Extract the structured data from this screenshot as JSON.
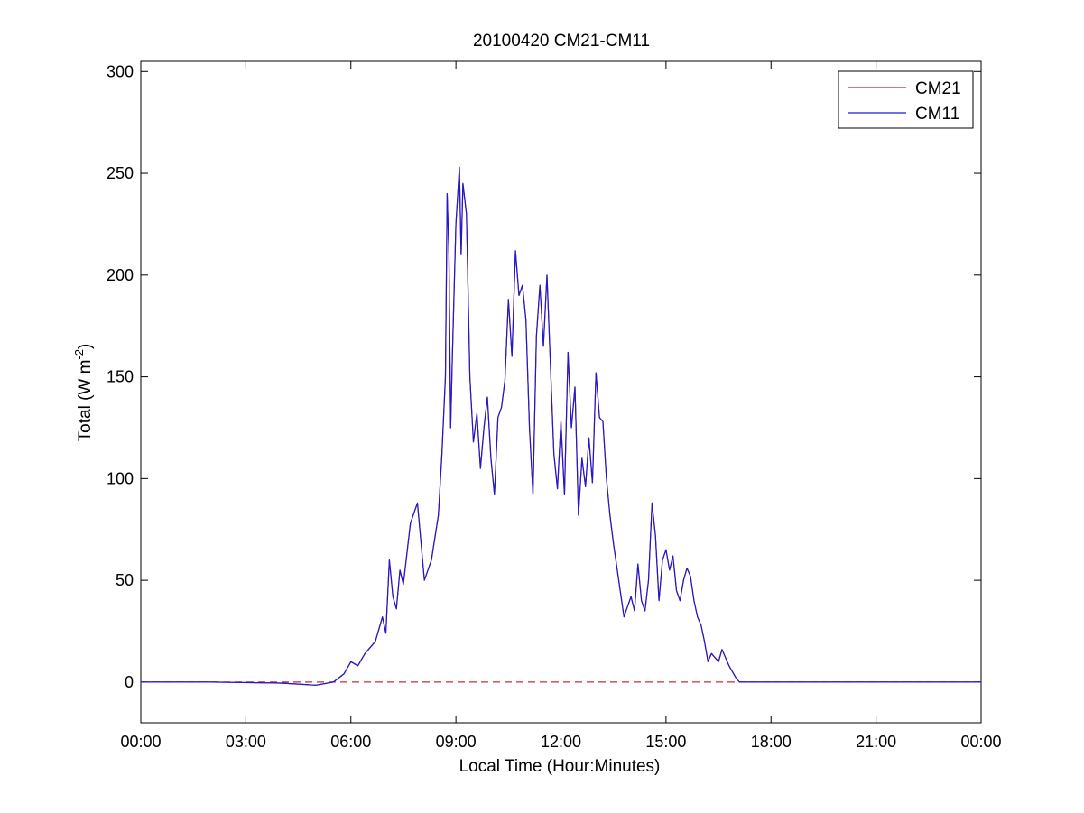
{
  "chart_data": {
    "type": "line",
    "title": "20100420 CM21-CM11",
    "xlabel": "Local Time (Hour:Minutes)",
    "ylabel": "Total (W m^-2)",
    "ylabel_parts": {
      "base": "Total (W m",
      "sup": "-2",
      "end": ")"
    },
    "xlim": [
      0,
      24
    ],
    "ylim": [
      -20,
      305
    ],
    "x_ticks": [
      0,
      3,
      6,
      9,
      12,
      15,
      18,
      21,
      24
    ],
    "x_tick_labels": [
      "00:00",
      "03:00",
      "06:00",
      "09:00",
      "12:00",
      "15:00",
      "18:00",
      "21:00",
      "00:00"
    ],
    "y_ticks": [
      0,
      50,
      100,
      150,
      200,
      250,
      300
    ],
    "y_tick_labels": [
      "0",
      "50",
      "100",
      "150",
      "200",
      "250",
      "300"
    ],
    "grid": false,
    "legend_position": "top-right",
    "reference_line": {
      "y": 0,
      "style": "dashed",
      "color": "#c0303a"
    },
    "series": [
      {
        "name": "CM21",
        "color": "#cc2020",
        "x": [
          0,
          2.0,
          4.0,
          4.5,
          5.0,
          5.5,
          5.8,
          6.0,
          6.2,
          6.4,
          6.7,
          6.9,
          7.0,
          7.1,
          7.2,
          7.3,
          7.4,
          7.5,
          7.7,
          7.9,
          8.1,
          8.3,
          8.5,
          8.6,
          8.7,
          8.75,
          8.8,
          8.85,
          8.9,
          9.0,
          9.1,
          9.15,
          9.2,
          9.3,
          9.4,
          9.5,
          9.6,
          9.7,
          9.8,
          9.9,
          10.0,
          10.1,
          10.2,
          10.3,
          10.4,
          10.5,
          10.6,
          10.7,
          10.8,
          10.9,
          11.0,
          11.1,
          11.2,
          11.3,
          11.4,
          11.5,
          11.6,
          11.7,
          11.8,
          11.9,
          12.0,
          12.1,
          12.2,
          12.3,
          12.4,
          12.5,
          12.6,
          12.7,
          12.8,
          12.9,
          13.0,
          13.1,
          13.2,
          13.3,
          13.4,
          13.5,
          13.6,
          13.8,
          14.0,
          14.1,
          14.2,
          14.3,
          14.4,
          14.5,
          14.6,
          14.7,
          14.8,
          14.9,
          15.0,
          15.1,
          15.2,
          15.3,
          15.4,
          15.5,
          15.6,
          15.7,
          15.8,
          15.9,
          16.0,
          16.1,
          16.2,
          16.3,
          16.4,
          16.5,
          16.6,
          16.7,
          16.8,
          16.9,
          17.0,
          17.1,
          17.2,
          17.3,
          17.5,
          17.7,
          17.9,
          18.1,
          18.3,
          18.5,
          18.7,
          19.0,
          21.0,
          24.0
        ],
        "values": [
          0,
          0,
          -0.5,
          -1,
          -1.5,
          0,
          4,
          10,
          8,
          14,
          20,
          32,
          24,
          60,
          42,
          36,
          55,
          48,
          78,
          88,
          50,
          60,
          82,
          112,
          150,
          240,
          210,
          125,
          160,
          225,
          253,
          210,
          245,
          230,
          150,
          118,
          132,
          105,
          125,
          140,
          110,
          92,
          130,
          135,
          148,
          188,
          160,
          212,
          190,
          195,
          178,
          125,
          92,
          170,
          195,
          165,
          200,
          155,
          112,
          95,
          128,
          92,
          162,
          125,
          145,
          82,
          110,
          96,
          120,
          98,
          152,
          130,
          128,
          100,
          82,
          68,
          56,
          32,
          42,
          35,
          58,
          40,
          35,
          50,
          88,
          72,
          40,
          60,
          65,
          55,
          62,
          45,
          40,
          50,
          56,
          52,
          40,
          32,
          28,
          20,
          10,
          14,
          12,
          10,
          16,
          12,
          8,
          5,
          2,
          0,
          0,
          0,
          0,
          0,
          0,
          0,
          0,
          0,
          0,
          0,
          0,
          0
        ]
      },
      {
        "name": "CM11",
        "color": "#1a1ad4",
        "x": [
          0,
          2.0,
          4.0,
          4.5,
          5.0,
          5.5,
          5.8,
          6.0,
          6.2,
          6.4,
          6.7,
          6.9,
          7.0,
          7.1,
          7.2,
          7.3,
          7.4,
          7.5,
          7.7,
          7.9,
          8.1,
          8.3,
          8.5,
          8.6,
          8.7,
          8.75,
          8.8,
          8.85,
          8.9,
          9.0,
          9.1,
          9.15,
          9.2,
          9.3,
          9.4,
          9.5,
          9.6,
          9.7,
          9.8,
          9.9,
          10.0,
          10.1,
          10.2,
          10.3,
          10.4,
          10.5,
          10.6,
          10.7,
          10.8,
          10.9,
          11.0,
          11.1,
          11.2,
          11.3,
          11.4,
          11.5,
          11.6,
          11.7,
          11.8,
          11.9,
          12.0,
          12.1,
          12.2,
          12.3,
          12.4,
          12.5,
          12.6,
          12.7,
          12.8,
          12.9,
          13.0,
          13.1,
          13.2,
          13.3,
          13.4,
          13.5,
          13.6,
          13.8,
          14.0,
          14.1,
          14.2,
          14.3,
          14.4,
          14.5,
          14.6,
          14.7,
          14.8,
          14.9,
          15.0,
          15.1,
          15.2,
          15.3,
          15.4,
          15.5,
          15.6,
          15.7,
          15.8,
          15.9,
          16.0,
          16.1,
          16.2,
          16.3,
          16.4,
          16.5,
          16.6,
          16.7,
          16.8,
          16.9,
          17.0,
          17.1,
          17.2,
          17.3,
          17.5,
          17.7,
          17.9,
          18.1,
          18.3,
          18.5,
          18.7,
          19.0,
          21.0,
          24.0
        ],
        "values": [
          0,
          0,
          -0.5,
          -1,
          -1.5,
          0,
          4,
          10,
          8,
          14,
          20,
          32,
          24,
          60,
          42,
          36,
          55,
          48,
          78,
          88,
          50,
          60,
          82,
          112,
          150,
          240,
          210,
          125,
          160,
          225,
          253,
          210,
          245,
          230,
          150,
          118,
          132,
          105,
          125,
          140,
          110,
          92,
          130,
          135,
          148,
          188,
          160,
          212,
          190,
          195,
          178,
          125,
          92,
          170,
          195,
          165,
          200,
          155,
          112,
          95,
          128,
          92,
          162,
          125,
          145,
          82,
          110,
          96,
          120,
          98,
          152,
          130,
          128,
          100,
          82,
          68,
          56,
          32,
          42,
          35,
          58,
          40,
          35,
          50,
          88,
          72,
          40,
          60,
          65,
          55,
          62,
          45,
          40,
          50,
          56,
          52,
          40,
          32,
          28,
          20,
          10,
          14,
          12,
          10,
          16,
          12,
          8,
          5,
          2,
          0,
          0,
          0,
          0,
          0,
          0,
          0,
          0,
          0,
          0,
          0,
          0,
          0
        ]
      }
    ]
  }
}
